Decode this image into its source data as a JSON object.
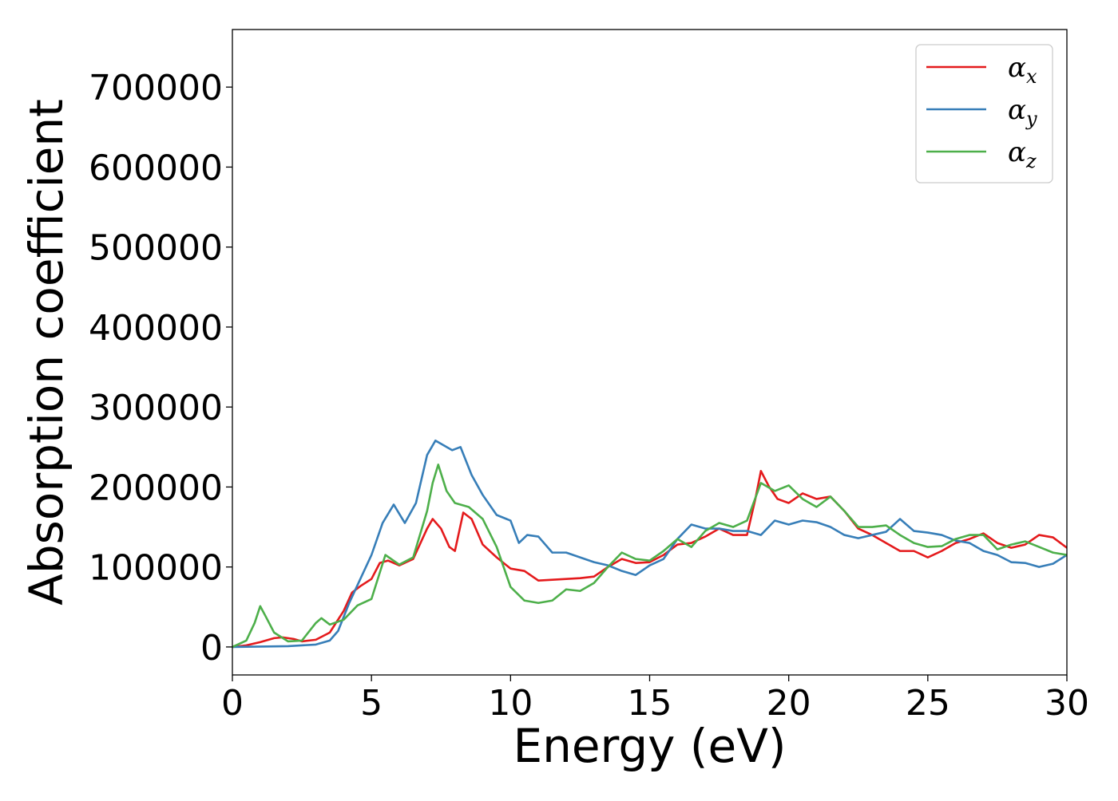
{
  "chart_data": {
    "type": "line",
    "xlabel": "Energy (eV)",
    "ylabel": "Absorption coefficient",
    "xlim": [
      0,
      30
    ],
    "ylim": [
      -35000,
      772000
    ],
    "xticks": [
      0,
      5,
      10,
      15,
      20,
      25,
      30
    ],
    "yticks": [
      0,
      100000,
      200000,
      300000,
      400000,
      500000,
      600000,
      700000
    ],
    "grid": false,
    "legend_position": "top-right",
    "series": [
      {
        "name": "αx",
        "legend_main": "α",
        "legend_sub": "x",
        "color": "#e41a1c",
        "x": [
          0,
          0.5,
          1,
          1.5,
          1.8,
          2.2,
          2.5,
          3,
          3.5,
          4,
          4.3,
          4.6,
          5,
          5.3,
          5.6,
          6,
          6.5,
          7,
          7.2,
          7.5,
          7.8,
          8,
          8.3,
          8.6,
          9,
          9.5,
          10,
          10.5,
          11,
          11.5,
          12,
          12.5,
          13,
          13.5,
          14,
          14.5,
          15,
          15.5,
          16,
          16.5,
          17,
          17.5,
          18,
          18.5,
          18.8,
          19,
          19.3,
          19.6,
          20,
          20.5,
          21,
          21.5,
          22,
          22.5,
          23,
          23.5,
          24,
          24.5,
          25,
          25.5,
          26,
          26.5,
          27,
          27.5,
          28,
          28.5,
          29,
          29.5,
          30
        ],
        "y": [
          0,
          2000,
          6000,
          11000,
          12000,
          10000,
          7000,
          9000,
          18000,
          45000,
          68000,
          76000,
          85000,
          105000,
          108000,
          102000,
          110000,
          148000,
          160000,
          148000,
          125000,
          120000,
          168000,
          160000,
          128000,
          112000,
          98000,
          95000,
          83000,
          84000,
          85000,
          86000,
          88000,
          100000,
          110000,
          105000,
          106000,
          115000,
          128000,
          130000,
          138000,
          148000,
          140000,
          140000,
          185000,
          220000,
          200000,
          185000,
          180000,
          192000,
          185000,
          188000,
          170000,
          148000,
          140000,
          130000,
          120000,
          120000,
          112000,
          120000,
          130000,
          135000,
          142000,
          130000,
          124000,
          128000,
          140000,
          137000,
          124000
        ]
      },
      {
        "name": "αy",
        "legend_main": "α",
        "legend_sub": "y",
        "color": "#377eb8",
        "x": [
          0,
          1,
          2,
          3,
          3.5,
          3.8,
          4.2,
          4.6,
          5,
          5.4,
          5.8,
          6.2,
          6.6,
          7,
          7.3,
          7.6,
          7.9,
          8.2,
          8.6,
          9,
          9.5,
          10,
          10.3,
          10.6,
          11,
          11.5,
          12,
          12.5,
          13,
          13.5,
          14,
          14.5,
          15,
          15.5,
          16,
          16.5,
          17,
          17.5,
          18,
          18.5,
          19,
          19.5,
          20,
          20.5,
          21,
          21.5,
          22,
          22.5,
          23,
          23.5,
          24,
          24.5,
          25,
          25.5,
          26,
          26.5,
          27,
          27.5,
          28,
          28.5,
          29,
          29.5,
          30
        ],
        "y": [
          0,
          500,
          1000,
          3000,
          8000,
          20000,
          55000,
          85000,
          115000,
          155000,
          178000,
          155000,
          180000,
          240000,
          258000,
          252000,
          246000,
          250000,
          215000,
          190000,
          165000,
          158000,
          130000,
          140000,
          138000,
          118000,
          118000,
          112000,
          106000,
          102000,
          95000,
          90000,
          102000,
          110000,
          135000,
          153000,
          148000,
          148000,
          145000,
          145000,
          140000,
          158000,
          153000,
          158000,
          156000,
          150000,
          140000,
          136000,
          140000,
          144000,
          160000,
          145000,
          143000,
          140000,
          133000,
          130000,
          120000,
          115000,
          106000,
          105000,
          100000,
          104000,
          115000
        ]
      },
      {
        "name": "αz",
        "legend_main": "α",
        "legend_sub": "z",
        "color": "#4daf4a",
        "x": [
          0,
          0.5,
          0.8,
          1,
          1.2,
          1.5,
          2,
          2.5,
          3,
          3.2,
          3.5,
          4,
          4.5,
          5,
          5.5,
          6,
          6.5,
          7,
          7.2,
          7.4,
          7.7,
          8,
          8.5,
          9,
          9.5,
          10,
          10.5,
          11,
          11.5,
          12,
          12.5,
          13,
          13.5,
          14,
          14.5,
          15,
          15.5,
          16,
          16.5,
          17,
          17.5,
          18,
          18.5,
          19,
          19.5,
          20,
          20.5,
          21,
          21.5,
          22,
          22.5,
          23,
          23.5,
          24,
          24.5,
          25,
          25.5,
          26,
          26.5,
          27,
          27.5,
          28,
          28.5,
          29,
          29.5,
          30
        ],
        "y": [
          0,
          8000,
          30000,
          51000,
          38000,
          18000,
          7000,
          8000,
          30000,
          36000,
          28000,
          34000,
          52000,
          60000,
          115000,
          103000,
          112000,
          170000,
          205000,
          228000,
          195000,
          180000,
          175000,
          160000,
          125000,
          75000,
          58000,
          55000,
          58000,
          72000,
          70000,
          80000,
          100000,
          118000,
          110000,
          108000,
          120000,
          135000,
          125000,
          145000,
          155000,
          150000,
          158000,
          205000,
          195000,
          202000,
          185000,
          175000,
          188000,
          170000,
          150000,
          150000,
          152000,
          140000,
          130000,
          125000,
          126000,
          135000,
          140000,
          140000,
          122000,
          128000,
          132000,
          125000,
          118000,
          115000
        ]
      }
    ]
  }
}
